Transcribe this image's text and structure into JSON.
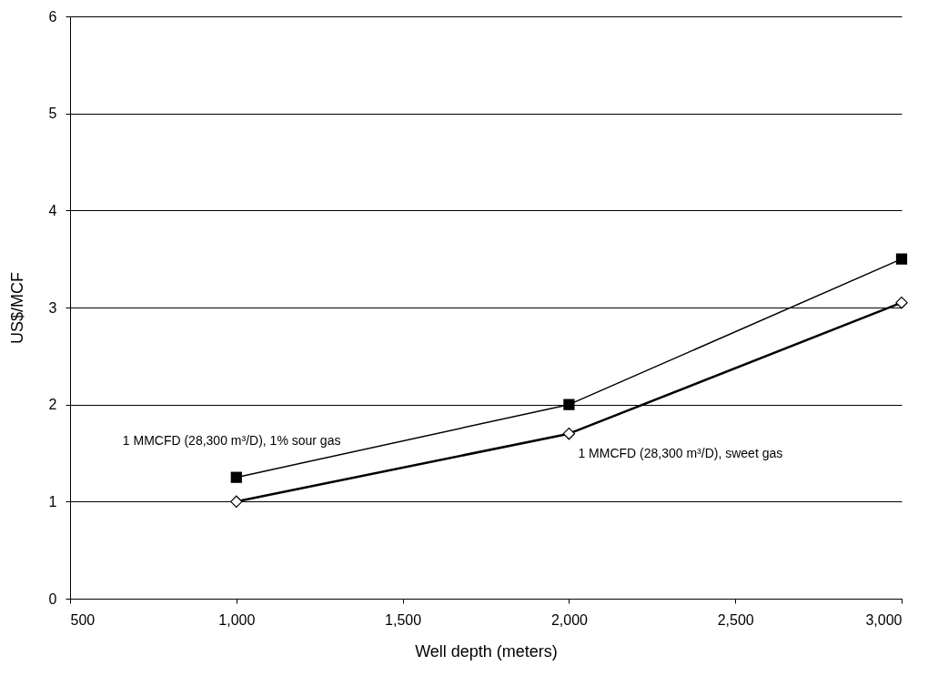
{
  "chart_data": {
    "type": "line",
    "xlabel": "Well depth (meters)",
    "ylabel": "US$/MCF",
    "x": [
      1000,
      2000,
      3000
    ],
    "series": [
      {
        "name": "1 MMCFD (28,300 m³/D), 1% sour gas",
        "color": "#000000",
        "marker": "square",
        "values": [
          1.25,
          2.0,
          3.5
        ]
      },
      {
        "name": "1 MMCFD (28,300 m³/D), sweet gas",
        "color": "#000000",
        "marker": "diamond",
        "values": [
          1.0,
          1.7,
          3.05
        ]
      }
    ],
    "xlim": [
      500,
      3000
    ],
    "xticks": [
      {
        "value": 500,
        "label": "500"
      },
      {
        "value": 1000,
        "label": "1,000"
      },
      {
        "value": 1500,
        "label": "1,500"
      },
      {
        "value": 2000,
        "label": "2,000"
      },
      {
        "value": 2500,
        "label": "2,500"
      },
      {
        "value": 3000,
        "label": "3,000"
      }
    ],
    "ylim": [
      0,
      6
    ],
    "yticks": [
      0,
      1,
      2,
      3,
      4,
      5,
      6
    ],
    "grid": "y",
    "legend": false
  }
}
